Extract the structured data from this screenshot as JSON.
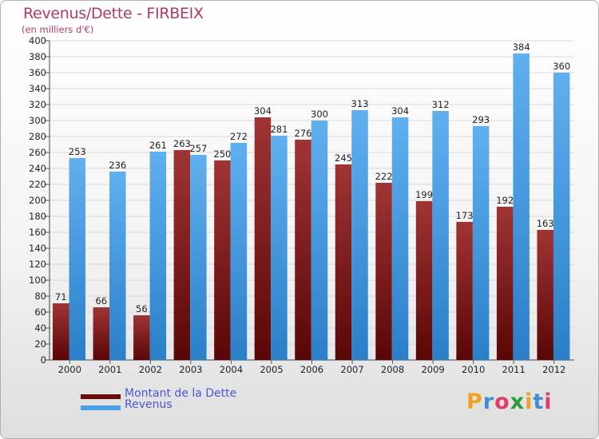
{
  "title": "Revenus/Dette - FIRBEIX",
  "subtitle": "(en milliers d'€)",
  "logo": {
    "letters": [
      "P",
      "r",
      "o",
      "x",
      "i",
      "t",
      "i"
    ],
    "colors": [
      "#f2a020",
      "#3c8fd6",
      "#e23b6a",
      "#2f9a3c",
      "#f2a020",
      "#3c8fd6",
      "#e23b6a"
    ]
  },
  "legend": [
    {
      "label": "Montant de la Dette",
      "color": "#6a0c0c"
    },
    {
      "label": "Revenus",
      "color": "#4aa0e6"
    }
  ],
  "chart_data": {
    "type": "bar",
    "categories": [
      "2000",
      "2001",
      "2002",
      "2003",
      "2004",
      "2005",
      "2006",
      "2007",
      "2008",
      "2009",
      "2010",
      "2011",
      "2012"
    ],
    "series": [
      {
        "name": "Montant de la Dette",
        "values": [
          71,
          66,
          56,
          263,
          250,
          304,
          276,
          245,
          222,
          199,
          173,
          192,
          163
        ],
        "color_top": "#a03434",
        "color_bottom": "#5a0606"
      },
      {
        "name": "Revenus",
        "values": [
          253,
          236,
          261,
          257,
          272,
          281,
          300,
          313,
          304,
          312,
          293,
          384,
          360
        ],
        "color_top": "#5fb0ef",
        "color_bottom": "#2a7fc9"
      }
    ],
    "ylim": [
      0,
      400
    ],
    "ytick_step": 20,
    "grid": true
  }
}
